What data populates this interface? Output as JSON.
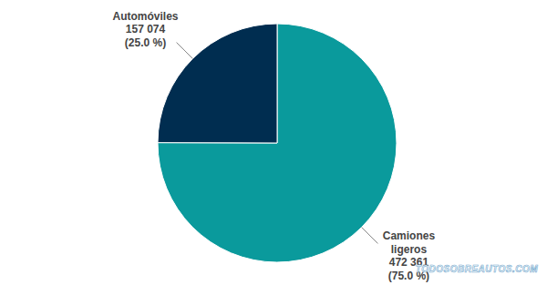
{
  "chart_data": {
    "type": "pie",
    "categories": [
      "Camiones ligeros",
      "Automóviles"
    ],
    "values": [
      472361,
      157074
    ],
    "value_labels": [
      "472  361",
      "157 074"
    ],
    "percents": [
      75.0,
      25.0
    ],
    "percent_labels": [
      "(75.0 %)",
      "(25.0 %)"
    ],
    "colors": [
      "#0a9a9c",
      "#002d50"
    ],
    "data_labels": true,
    "watermark": "TODOSOBREAUTOS.COM"
  }
}
